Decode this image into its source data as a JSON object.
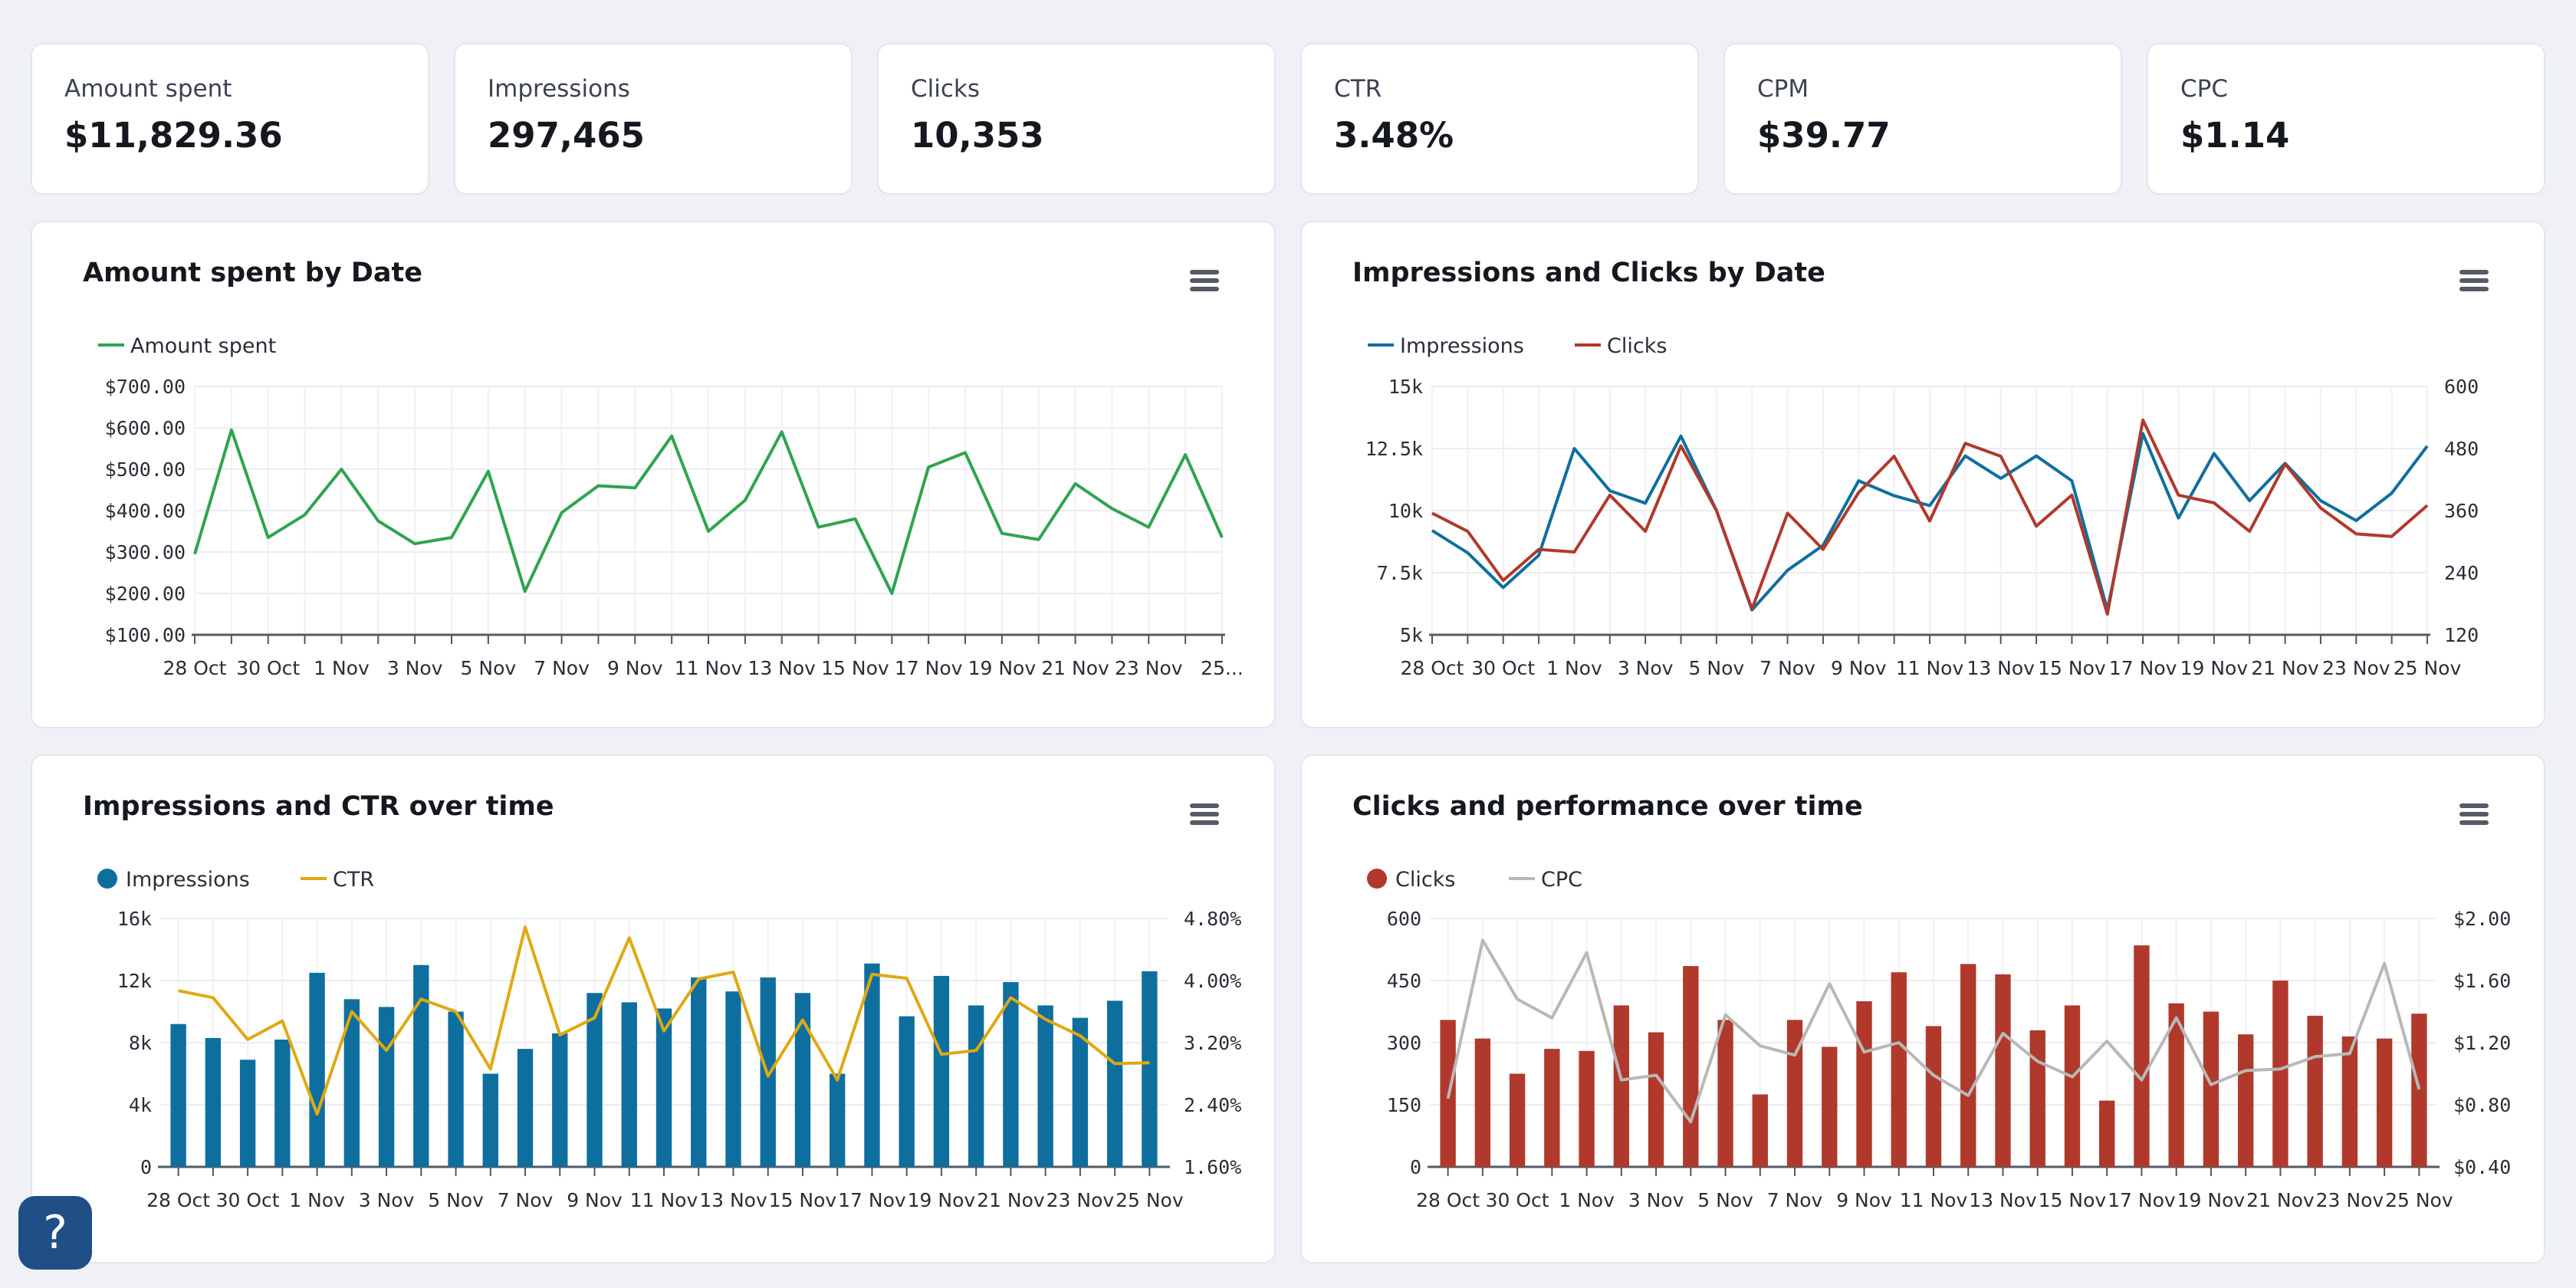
{
  "kpis": [
    {
      "label": "Amount spent",
      "value": "$11,829.36"
    },
    {
      "label": "Impressions",
      "value": "297,465"
    },
    {
      "label": "Clicks",
      "value": "10,353"
    },
    {
      "label": "CTR",
      "value": "3.48%"
    },
    {
      "label": "CPM",
      "value": "$39.77"
    },
    {
      "label": "CPC",
      "value": "$1.14"
    }
  ],
  "help": {
    "label": "?"
  },
  "colors": {
    "green": "#2fa44f",
    "blue": "#0e6f9e",
    "red": "#b0392b",
    "gold": "#e0a814",
    "grey": "#b8b8b8"
  },
  "chart_data": [
    {
      "type": "line",
      "title": "Amount spent by Date",
      "legend": [
        {
          "name": "Amount spent",
          "marker": "line"
        }
      ],
      "xticks": [
        "28 Oct",
        "30 Oct",
        "1 Nov",
        "3 Nov",
        "5 Nov",
        "7 Nov",
        "9 Nov",
        "11 Nov",
        "13 Nov",
        "15 Nov",
        "17 Nov",
        "19 Nov",
        "21 Nov",
        "23 Nov",
        "25..."
      ],
      "yticks": [
        "$100.00",
        "$200.00",
        "$300.00",
        "$400.00",
        "$500.00",
        "$600.00",
        "$700.00"
      ],
      "ylim": [
        100,
        700
      ],
      "series": [
        {
          "name": "Amount spent",
          "values": [
            295,
            595,
            335,
            390,
            500,
            375,
            320,
            335,
            495,
            205,
            395,
            460,
            455,
            580,
            350,
            425,
            590,
            360,
            380,
            200,
            505,
            540,
            345,
            330,
            465,
            405,
            360,
            535,
            335
          ]
        }
      ]
    },
    {
      "type": "line",
      "title": "Impressions and Clicks by Date",
      "legend": [
        {
          "name": "Impressions",
          "marker": "line"
        },
        {
          "name": "Clicks",
          "marker": "line"
        }
      ],
      "xticks": [
        "28 Oct",
        "30 Oct",
        "1 Nov",
        "3 Nov",
        "5 Nov",
        "7 Nov",
        "9 Nov",
        "11 Nov",
        "13 Nov",
        "15 Nov",
        "17 Nov",
        "19 Nov",
        "21 Nov",
        "23 Nov",
        "25 Nov"
      ],
      "yticks_left": [
        "5k",
        "7.5k",
        "10k",
        "12.5k",
        "15k"
      ],
      "yticks_right": [
        "120",
        "240",
        "360",
        "480",
        "600"
      ],
      "ylim_left": [
        5000,
        15000
      ],
      "ylim_right": [
        120,
        600
      ],
      "series": [
        {
          "name": "Impressions",
          "axis": "left",
          "values": [
            9200,
            8300,
            6900,
            8200,
            12500,
            10800,
            10300,
            13000,
            10000,
            6000,
            7600,
            8600,
            11200,
            10600,
            10200,
            12200,
            11300,
            12200,
            11200,
            6000,
            13100,
            9700,
            12300,
            10400,
            11900,
            10400,
            9600,
            10700,
            12600
          ]
        },
        {
          "name": "Clicks",
          "axis": "right",
          "values": [
            355,
            320,
            225,
            285,
            280,
            390,
            320,
            485,
            360,
            170,
            355,
            285,
            395,
            465,
            340,
            490,
            465,
            330,
            390,
            160,
            535,
            390,
            375,
            320,
            450,
            365,
            315,
            310,
            370
          ]
        }
      ]
    },
    {
      "type": "bar",
      "title": "Impressions and CTR over time",
      "legend": [
        {
          "name": "Impressions",
          "marker": "dot"
        },
        {
          "name": "CTR",
          "marker": "line"
        }
      ],
      "xticks": [
        "28 Oct",
        "30 Oct",
        "1 Nov",
        "3 Nov",
        "5 Nov",
        "7 Nov",
        "9 Nov",
        "11 Nov",
        "13 Nov",
        "15 Nov",
        "17 Nov",
        "19 Nov",
        "21 Nov",
        "23 Nov",
        "25 Nov"
      ],
      "yticks_left": [
        "0",
        "4k",
        "8k",
        "12k",
        "16k"
      ],
      "yticks_right": [
        "1.60%",
        "2.40%",
        "3.20%",
        "4.00%",
        "4.80%"
      ],
      "ylim_left": [
        0,
        16000
      ],
      "ylim_right": [
        1.6,
        4.8
      ],
      "series": [
        {
          "name": "Impressions",
          "axis": "left",
          "kind": "bar",
          "values": [
            9200,
            8300,
            6900,
            8200,
            12500,
            10800,
            10300,
            13000,
            10000,
            6000,
            7600,
            8600,
            11200,
            10600,
            10200,
            12200,
            11300,
            12200,
            11200,
            6000,
            13100,
            9700,
            12300,
            10400,
            11900,
            10400,
            9600,
            10700,
            12600
          ]
        },
        {
          "name": "CTR",
          "axis": "right",
          "kind": "line",
          "values": [
            3.87,
            3.78,
            3.24,
            3.48,
            2.28,
            3.6,
            3.1,
            3.76,
            3.6,
            2.86,
            4.69,
            3.3,
            3.52,
            4.55,
            3.35,
            4.02,
            4.11,
            2.77,
            3.49,
            2.72,
            4.08,
            4.03,
            3.05,
            3.1,
            3.78,
            3.5,
            3.29,
            2.93,
            2.94
          ]
        }
      ]
    },
    {
      "type": "bar",
      "title": "Clicks and performance over time",
      "legend": [
        {
          "name": "Clicks",
          "marker": "dot"
        },
        {
          "name": "CPC",
          "marker": "line"
        }
      ],
      "xticks": [
        "28 Oct",
        "30 Oct",
        "1 Nov",
        "3 Nov",
        "5 Nov",
        "7 Nov",
        "9 Nov",
        "11 Nov",
        "13 Nov",
        "15 Nov",
        "17 Nov",
        "19 Nov",
        "21 Nov",
        "23 Nov",
        "25 Nov"
      ],
      "yticks_left": [
        "0",
        "150",
        "300",
        "450",
        "600"
      ],
      "yticks_right": [
        "$0.40",
        "$0.80",
        "$1.20",
        "$1.60",
        "$2.00"
      ],
      "ylim_left": [
        0,
        600
      ],
      "ylim_right": [
        0.4,
        2.0
      ],
      "series": [
        {
          "name": "Clicks",
          "axis": "left",
          "kind": "bar",
          "values": [
            355,
            310,
            225,
            285,
            280,
            390,
            325,
            485,
            355,
            175,
            355,
            290,
            400,
            470,
            340,
            490,
            465,
            330,
            390,
            160,
            535,
            395,
            375,
            320,
            450,
            365,
            315,
            310,
            370
          ]
        },
        {
          "name": "CPC",
          "axis": "right",
          "kind": "line",
          "values": [
            0.84,
            1.86,
            1.48,
            1.36,
            1.78,
            0.96,
            0.99,
            0.69,
            1.38,
            1.18,
            1.12,
            1.58,
            1.14,
            1.2,
            0.99,
            0.86,
            1.26,
            1.08,
            0.98,
            1.21,
            0.96,
            1.36,
            0.93,
            1.02,
            1.03,
            1.11,
            1.13,
            1.71,
            0.9
          ]
        }
      ]
    }
  ]
}
